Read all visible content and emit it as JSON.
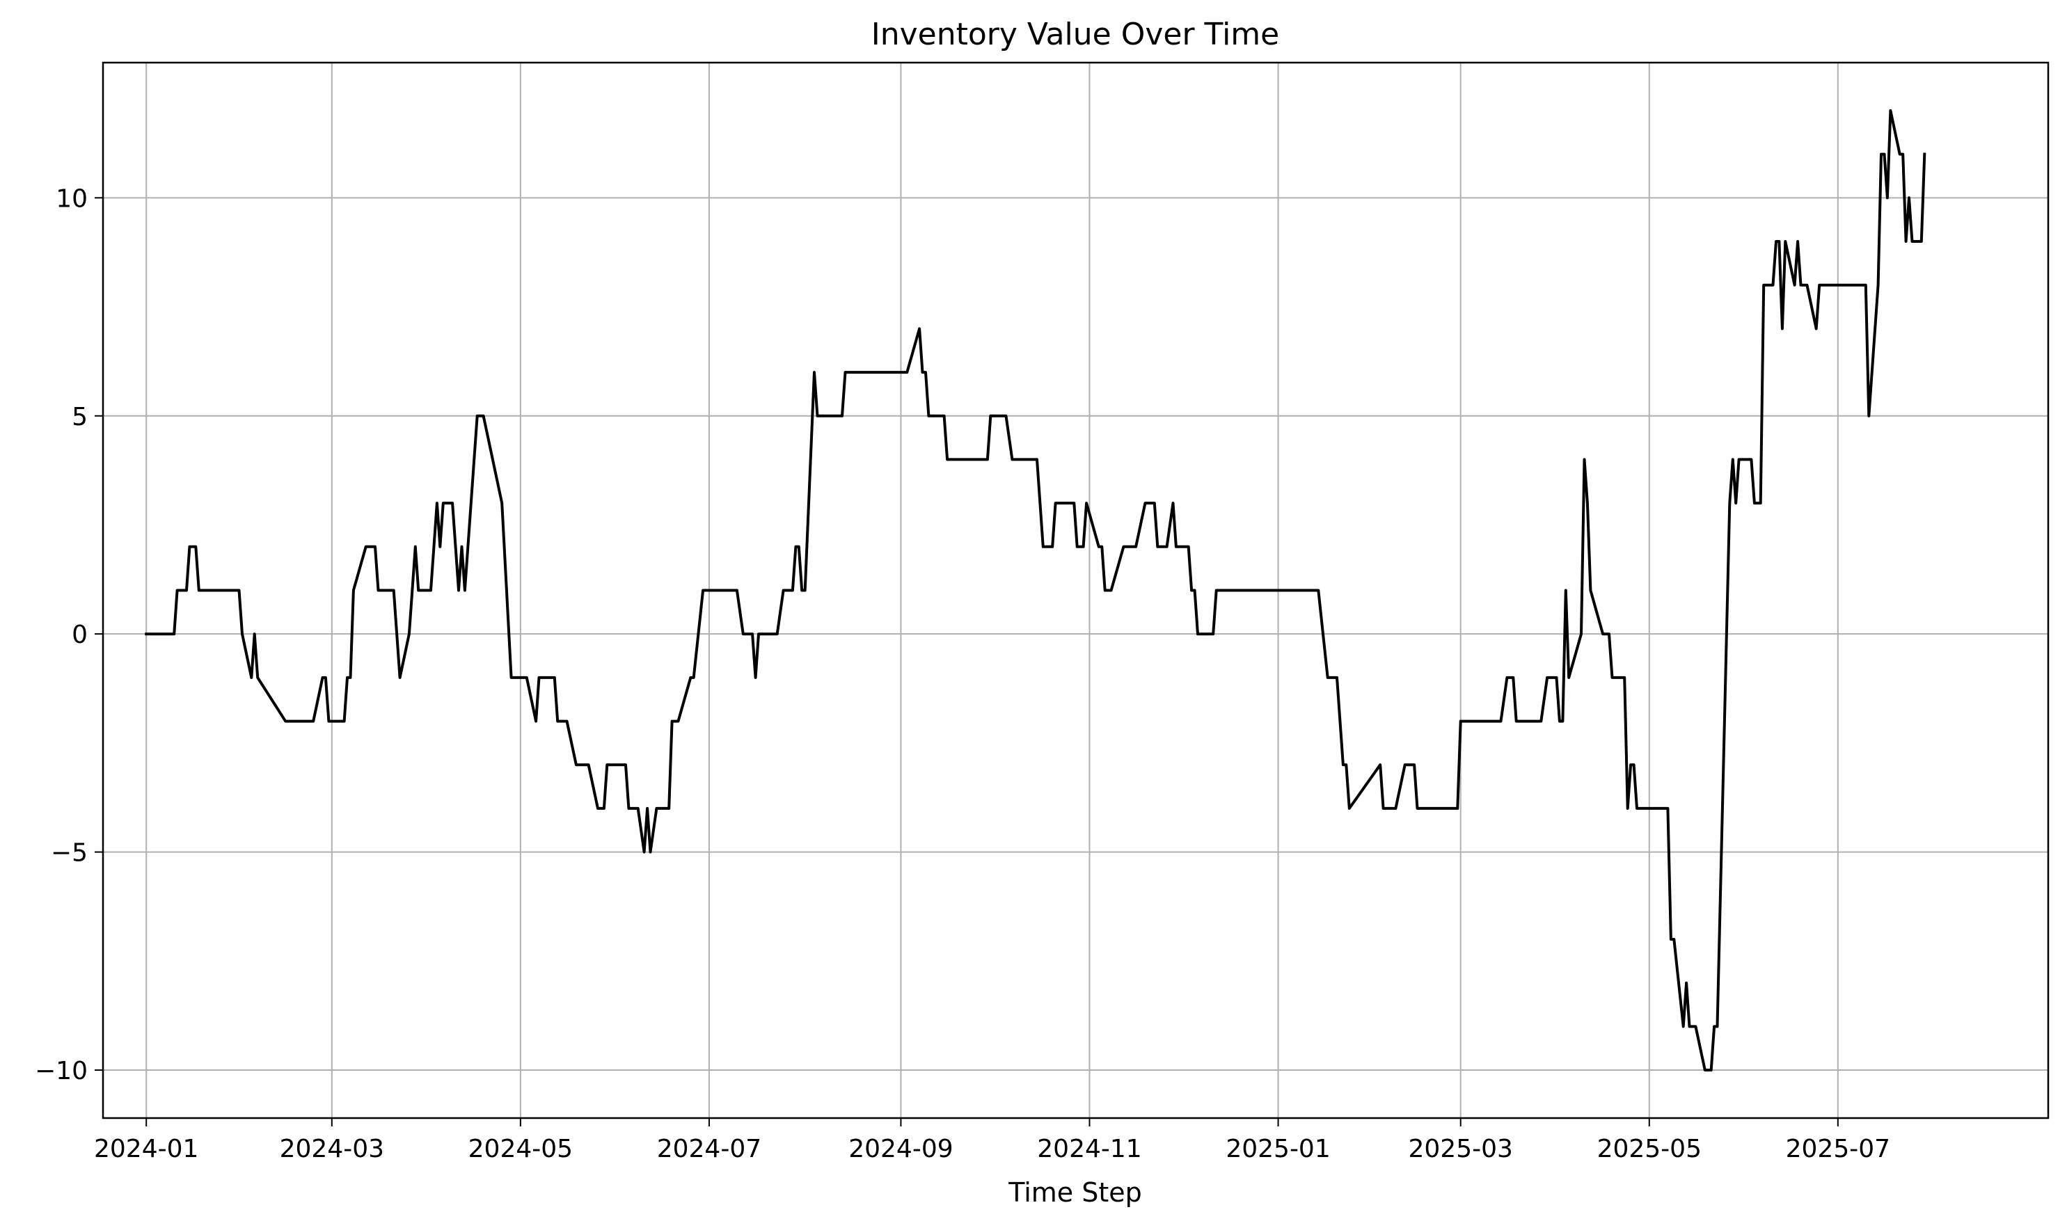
{
  "chart_data": {
    "type": "line",
    "title": "Inventory Value Over Time",
    "xlabel": "Time Step",
    "ylabel": "",
    "grid": true,
    "x_axis_type": "date",
    "xlim": [
      "2023-12-18",
      "2025-09-07"
    ],
    "ylim": [
      -11.1,
      13.1
    ],
    "x_ticks": [
      "2024-01-01",
      "2024-03-01",
      "2024-05-01",
      "2024-07-01",
      "2024-09-01",
      "2024-11-01",
      "2025-01-01",
      "2025-03-01",
      "2025-05-01",
      "2025-07-01"
    ],
    "x_tick_labels": [
      "2024-01",
      "2024-03",
      "2024-05",
      "2024-07",
      "2024-09",
      "2024-11",
      "2025-01",
      "2025-03",
      "2025-05",
      "2025-07"
    ],
    "y_ticks": [
      -10,
      -5,
      0,
      5,
      10
    ],
    "y_tick_labels": [
      "−10",
      "−5",
      "0",
      "5",
      "10"
    ],
    "series": [
      {
        "color": "#000000",
        "points": [
          [
            "2024-01-01",
            0
          ],
          [
            "2024-01-10",
            0
          ],
          [
            "2024-01-11",
            1
          ],
          [
            "2024-01-14",
            1
          ],
          [
            "2024-01-15",
            2
          ],
          [
            "2024-01-17",
            2
          ],
          [
            "2024-01-18",
            1
          ],
          [
            "2024-01-31",
            1
          ],
          [
            "2024-02-01",
            0
          ],
          [
            "2024-02-04",
            -1
          ],
          [
            "2024-02-05",
            0
          ],
          [
            "2024-02-06",
            -1
          ],
          [
            "2024-02-15",
            -2
          ],
          [
            "2024-02-24",
            -2
          ],
          [
            "2024-02-27",
            -1
          ],
          [
            "2024-02-28",
            -1
          ],
          [
            "2024-02-29",
            -2
          ],
          [
            "2024-03-05",
            -2
          ],
          [
            "2024-03-06",
            -1
          ],
          [
            "2024-03-07",
            -1
          ],
          [
            "2024-03-08",
            1
          ],
          [
            "2024-03-12",
            2
          ],
          [
            "2024-03-15",
            2
          ],
          [
            "2024-03-16",
            1
          ],
          [
            "2024-03-21",
            1
          ],
          [
            "2024-03-23",
            -1
          ],
          [
            "2024-03-26",
            0
          ],
          [
            "2024-03-28",
            2
          ],
          [
            "2024-03-29",
            1
          ],
          [
            "2024-04-02",
            1
          ],
          [
            "2024-04-04",
            3
          ],
          [
            "2024-04-05",
            2
          ],
          [
            "2024-04-06",
            3
          ],
          [
            "2024-04-09",
            3
          ],
          [
            "2024-04-11",
            1
          ],
          [
            "2024-04-12",
            2
          ],
          [
            "2024-04-13",
            1
          ],
          [
            "2024-04-17",
            5
          ],
          [
            "2024-04-19",
            5
          ],
          [
            "2024-04-22",
            4
          ],
          [
            "2024-04-25",
            3
          ],
          [
            "2024-04-28",
            -1
          ],
          [
            "2024-05-03",
            -1
          ],
          [
            "2024-05-06",
            -2
          ],
          [
            "2024-05-07",
            -1
          ],
          [
            "2024-05-12",
            -1
          ],
          [
            "2024-05-13",
            -2
          ],
          [
            "2024-05-16",
            -2
          ],
          [
            "2024-05-19",
            -3
          ],
          [
            "2024-05-23",
            -3
          ],
          [
            "2024-05-26",
            -4
          ],
          [
            "2024-05-28",
            -4
          ],
          [
            "2024-05-29",
            -3
          ],
          [
            "2024-06-04",
            -3
          ],
          [
            "2024-06-05",
            -4
          ],
          [
            "2024-06-08",
            -4
          ],
          [
            "2024-06-10",
            -5
          ],
          [
            "2024-06-11",
            -4
          ],
          [
            "2024-06-12",
            -5
          ],
          [
            "2024-06-14",
            -4
          ],
          [
            "2024-06-18",
            -4
          ],
          [
            "2024-06-19",
            -2
          ],
          [
            "2024-06-21",
            -2
          ],
          [
            "2024-06-25",
            -1
          ],
          [
            "2024-06-26",
            -1
          ],
          [
            "2024-06-29",
            1
          ],
          [
            "2024-07-10",
            1
          ],
          [
            "2024-07-12",
            0
          ],
          [
            "2024-07-15",
            0
          ],
          [
            "2024-07-16",
            -1
          ],
          [
            "2024-07-17",
            0
          ],
          [
            "2024-07-23",
            0
          ],
          [
            "2024-07-25",
            1
          ],
          [
            "2024-07-28",
            1
          ],
          [
            "2024-07-29",
            2
          ],
          [
            "2024-07-30",
            2
          ],
          [
            "2024-07-31",
            1
          ],
          [
            "2024-08-01",
            1
          ],
          [
            "2024-08-04",
            6
          ],
          [
            "2024-08-05",
            5
          ],
          [
            "2024-08-13",
            5
          ],
          [
            "2024-08-14",
            6
          ],
          [
            "2024-09-03",
            6
          ],
          [
            "2024-09-07",
            7
          ],
          [
            "2024-09-08",
            6
          ],
          [
            "2024-09-09",
            6
          ],
          [
            "2024-09-10",
            5
          ],
          [
            "2024-09-15",
            5
          ],
          [
            "2024-09-16",
            4
          ],
          [
            "2024-09-29",
            4
          ],
          [
            "2024-09-30",
            5
          ],
          [
            "2024-10-05",
            5
          ],
          [
            "2024-10-07",
            4
          ],
          [
            "2024-10-15",
            4
          ],
          [
            "2024-10-17",
            2
          ],
          [
            "2024-10-20",
            2
          ],
          [
            "2024-10-21",
            3
          ],
          [
            "2024-10-27",
            3
          ],
          [
            "2024-10-28",
            2
          ],
          [
            "2024-10-30",
            2
          ],
          [
            "2024-10-31",
            3
          ],
          [
            "2024-11-04",
            2
          ],
          [
            "2024-11-05",
            2
          ],
          [
            "2024-11-06",
            1
          ],
          [
            "2024-11-08",
            1
          ],
          [
            "2024-11-12",
            2
          ],
          [
            "2024-11-16",
            2
          ],
          [
            "2024-11-19",
            3
          ],
          [
            "2024-11-22",
            3
          ],
          [
            "2024-11-23",
            2
          ],
          [
            "2024-11-26",
            2
          ],
          [
            "2024-11-28",
            3
          ],
          [
            "2024-11-29",
            2
          ],
          [
            "2024-12-03",
            2
          ],
          [
            "2024-12-04",
            1
          ],
          [
            "2024-12-05",
            1
          ],
          [
            "2024-12-06",
            0
          ],
          [
            "2024-12-11",
            0
          ],
          [
            "2024-12-12",
            1
          ],
          [
            "2025-01-14",
            1
          ],
          [
            "2025-01-17",
            -1
          ],
          [
            "2025-01-20",
            -1
          ],
          [
            "2025-01-22",
            -3
          ],
          [
            "2025-01-23",
            -3
          ],
          [
            "2025-01-24",
            -4
          ],
          [
            "2025-02-03",
            -3
          ],
          [
            "2025-02-04",
            -4
          ],
          [
            "2025-02-08",
            -4
          ],
          [
            "2025-02-11",
            -3
          ],
          [
            "2025-02-14",
            -3
          ],
          [
            "2025-02-15",
            -4
          ],
          [
            "2025-02-28",
            -4
          ],
          [
            "2025-03-01",
            -2
          ],
          [
            "2025-03-14",
            -2
          ],
          [
            "2025-03-16",
            -1
          ],
          [
            "2025-03-18",
            -1
          ],
          [
            "2025-03-19",
            -2
          ],
          [
            "2025-03-27",
            -2
          ],
          [
            "2025-03-29",
            -1
          ],
          [
            "2025-04-01",
            -1
          ],
          [
            "2025-04-02",
            -2
          ],
          [
            "2025-04-03",
            -2
          ],
          [
            "2025-04-04",
            1
          ],
          [
            "2025-04-05",
            -1
          ],
          [
            "2025-04-09",
            0
          ],
          [
            "2025-04-10",
            4
          ],
          [
            "2025-04-11",
            3
          ],
          [
            "2025-04-12",
            1
          ],
          [
            "2025-04-16",
            0
          ],
          [
            "2025-04-18",
            0
          ],
          [
            "2025-04-19",
            -1
          ],
          [
            "2025-04-23",
            -1
          ],
          [
            "2025-04-24",
            -4
          ],
          [
            "2025-04-25",
            -3
          ],
          [
            "2025-04-26",
            -3
          ],
          [
            "2025-04-27",
            -4
          ],
          [
            "2025-05-07",
            -4
          ],
          [
            "2025-05-08",
            -7
          ],
          [
            "2025-05-09",
            -7
          ],
          [
            "2025-05-12",
            -9
          ],
          [
            "2025-05-13",
            -8
          ],
          [
            "2025-05-14",
            -9
          ],
          [
            "2025-05-16",
            -9
          ],
          [
            "2025-05-19",
            -10
          ],
          [
            "2025-05-21",
            -10
          ],
          [
            "2025-05-22",
            -9
          ],
          [
            "2025-05-23",
            -9
          ],
          [
            "2025-05-27",
            3
          ],
          [
            "2025-05-28",
            4
          ],
          [
            "2025-05-29",
            3
          ],
          [
            "2025-05-30",
            4
          ],
          [
            "2025-06-03",
            4
          ],
          [
            "2025-06-04",
            3
          ],
          [
            "2025-06-06",
            3
          ],
          [
            "2025-06-07",
            8
          ],
          [
            "2025-06-10",
            8
          ],
          [
            "2025-06-11",
            9
          ],
          [
            "2025-06-12",
            9
          ],
          [
            "2025-06-13",
            7
          ],
          [
            "2025-06-14",
            9
          ],
          [
            "2025-06-17",
            8
          ],
          [
            "2025-06-18",
            9
          ],
          [
            "2025-06-19",
            8
          ],
          [
            "2025-06-21",
            8
          ],
          [
            "2025-06-24",
            7
          ],
          [
            "2025-06-25",
            8
          ],
          [
            "2025-07-10",
            8
          ],
          [
            "2025-07-11",
            5
          ],
          [
            "2025-07-14",
            8
          ],
          [
            "2025-07-15",
            11
          ],
          [
            "2025-07-16",
            11
          ],
          [
            "2025-07-17",
            10
          ],
          [
            "2025-07-18",
            12
          ],
          [
            "2025-07-21",
            11
          ],
          [
            "2025-07-22",
            11
          ],
          [
            "2025-07-23",
            9
          ],
          [
            "2025-07-24",
            10
          ],
          [
            "2025-07-25",
            9
          ],
          [
            "2025-07-28",
            9
          ],
          [
            "2025-07-29",
            11
          ]
        ]
      }
    ]
  }
}
